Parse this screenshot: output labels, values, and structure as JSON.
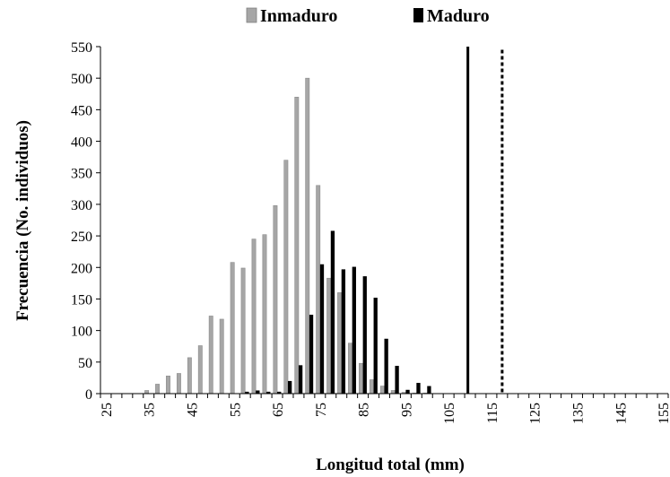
{
  "chart_data": {
    "type": "bar",
    "xlabel": "Longitud total (mm)",
    "ylabel": "Frecuencia (No. individuos)",
    "ylim": [
      0,
      550
    ],
    "yticks": [
      0,
      50,
      100,
      150,
      200,
      250,
      300,
      350,
      400,
      450,
      500,
      550
    ],
    "x": [
      25,
      27.5,
      30,
      32.5,
      35,
      37.5,
      40,
      42.5,
      45,
      47.5,
      50,
      52.5,
      55,
      57.5,
      60,
      62.5,
      65,
      67.5,
      70,
      72.5,
      75,
      77.5,
      80,
      82.5,
      85,
      87.5,
      90,
      92.5,
      95,
      97.5,
      100,
      102.5,
      105,
      107.5,
      110,
      112.5,
      115,
      117.5,
      120,
      122.5,
      125,
      127.5,
      130,
      132.5,
      135,
      137.5,
      140,
      142.5,
      145,
      147.5,
      150,
      152.5,
      155
    ],
    "xticks": [
      "25",
      "35",
      "45",
      "55",
      "65",
      "75",
      "85",
      "95",
      "105",
      "115",
      "125",
      "135",
      "145",
      "155"
    ],
    "legend_position": "top",
    "series": [
      {
        "name": "Inmaduro",
        "color": "#a6a6a6",
        "values": [
          0,
          0,
          0,
          0,
          5,
          15,
          28,
          32,
          57,
          76,
          123,
          118,
          208,
          199,
          245,
          252,
          298,
          370,
          470,
          500,
          330,
          183,
          160,
          80,
          48,
          22,
          12,
          5,
          2,
          1,
          1,
          0,
          0,
          0,
          0,
          0,
          0,
          0,
          0,
          0,
          0,
          0,
          0,
          0,
          0,
          0,
          0,
          0,
          0,
          0,
          0,
          0,
          0
        ]
      },
      {
        "name": "Maduro",
        "color": "#000000",
        "values": [
          0,
          0,
          0,
          0,
          0,
          0,
          0,
          0,
          0,
          0,
          0,
          0,
          0,
          3,
          5,
          3,
          3,
          20,
          45,
          125,
          205,
          258,
          197,
          201,
          186,
          152,
          87,
          44,
          6,
          17,
          12,
          0,
          0,
          0,
          0,
          0,
          0,
          0,
          0,
          0,
          0,
          0,
          0,
          0,
          0,
          0,
          0,
          0,
          0,
          0,
          0,
          0,
          0
        ]
      }
    ],
    "annotations": [
      {
        "type": "solid-vertical-line",
        "x": 109.5,
        "ymax": 550
      },
      {
        "type": "dashed-vertical-line",
        "x": 117.5,
        "ymax": 545
      }
    ]
  }
}
